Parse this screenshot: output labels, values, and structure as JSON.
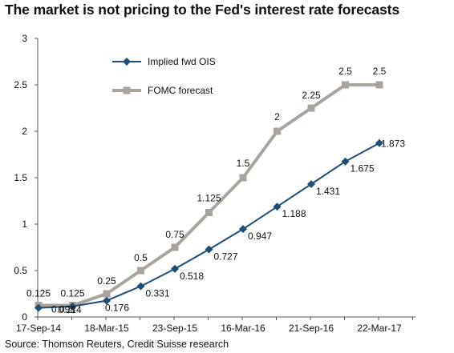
{
  "title": "The market is not pricing to the Fed's interest rate forecasts",
  "source": "Source: Thomson Reuters, Credit Suisse research",
  "chart_data": {
    "type": "line",
    "x_tick_labels": [
      "17-Sep-14",
      "18-Mar-15",
      "23-Sep-15",
      "16-Mar-16",
      "21-Sep-16",
      "22-Mar-17"
    ],
    "y_ticks": [
      0,
      0.5,
      1,
      1.5,
      2,
      2.5,
      3
    ],
    "y_tick_labels": [
      "0",
      "0.5",
      "1",
      "1.5",
      "2",
      "2.5",
      "3"
    ],
    "ylim": [
      0,
      3
    ],
    "grid": false,
    "legend_position": "top-left",
    "series": [
      {
        "name": "Implied fwd OIS",
        "color": "#1f4e79",
        "marker": "diamond",
        "values": [
          0.098,
          0.114,
          0.176,
          0.331,
          0.518,
          0.727,
          0.947,
          1.188,
          1.431,
          1.675,
          1.873
        ],
        "labels": [
          "0.098",
          "0.114",
          "0.176",
          "0.331",
          "0.518",
          "0.727",
          "0.947",
          "1.188",
          "1.431",
          "1.675",
          "1.873"
        ]
      },
      {
        "name": "FOMC forecast",
        "color": "#a9a39e",
        "marker": "square",
        "values": [
          0.125,
          0.125,
          0.25,
          0.5,
          0.75,
          1.125,
          1.5,
          2,
          2.25,
          2.5,
          2.5
        ],
        "labels": [
          "0.125",
          "0.125",
          "0.25",
          "0.5",
          "0.75",
          "1.125",
          "1.5",
          "2",
          "2.25",
          "2.5",
          "2.5"
        ]
      }
    ]
  }
}
